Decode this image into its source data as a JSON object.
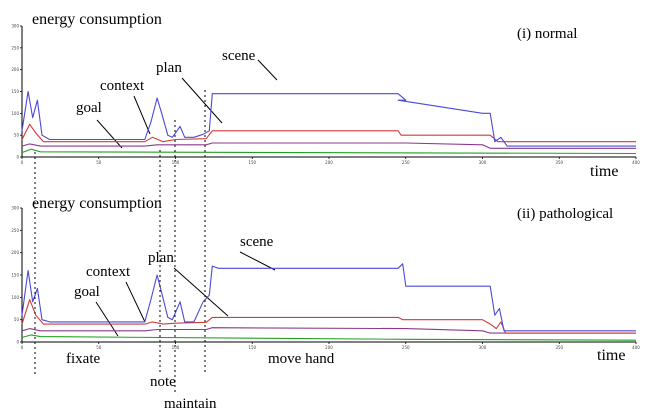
{
  "panels": [
    {
      "title": "(i) normal",
      "ylabel": "energy consumption",
      "xlabel": "time",
      "annotations": {
        "goal": "goal",
        "context": "context",
        "plan": "plan",
        "scene": "scene"
      }
    },
    {
      "title": "(ii) pathological",
      "ylabel": "energy consumption",
      "xlabel": "time",
      "annotations": {
        "goal": "goal",
        "context": "context",
        "plan": "plan",
        "scene": "scene"
      }
    }
  ],
  "phase_labels": {
    "fixate": "fixate",
    "note": "note",
    "maintain": "maintain",
    "move_hand": "move hand"
  },
  "colors": {
    "scene": "#4a4ad8",
    "plan": "#d23a3a",
    "context": "#8a3a8a",
    "goal": "#22a022",
    "axis": "#000000"
  },
  "chart_data": [
    {
      "type": "line",
      "title": "(i) normal",
      "xlabel": "time",
      "ylabel": "energy consumption",
      "xlim": [
        0,
        400
      ],
      "ylim": [
        0,
        300
      ],
      "xticks": [
        0,
        50,
        100,
        150,
        200,
        250,
        300,
        350,
        400
      ],
      "yticks": [
        0,
        50,
        100,
        150,
        200,
        250,
        300
      ],
      "series": [
        {
          "name": "scene",
          "points": [
            [
              0,
              60
            ],
            [
              4,
              150
            ],
            [
              7,
              90
            ],
            [
              10,
              130
            ],
            [
              13,
              50
            ],
            [
              18,
              40
            ],
            [
              80,
              40
            ],
            [
              84,
              80
            ],
            [
              88,
              135
            ],
            [
              91,
              100
            ],
            [
              95,
              50
            ],
            [
              98,
              45
            ],
            [
              103,
              70
            ],
            [
              106,
              45
            ],
            [
              112,
              45
            ],
            [
              118,
              52
            ],
            [
              122,
              60
            ],
            [
              124,
              145
            ],
            [
              128,
              145
            ],
            [
              245,
              145
            ],
            [
              250,
              130
            ],
            [
              245,
              130
            ],
            [
              300,
              100
            ],
            [
              305,
              100
            ],
            [
              308,
              35
            ],
            [
              312,
              45
            ],
            [
              316,
              25
            ],
            [
              400,
              25
            ]
          ]
        },
        {
          "name": "plan",
          "points": [
            [
              0,
              40
            ],
            [
              5,
              75
            ],
            [
              9,
              55
            ],
            [
              14,
              35
            ],
            [
              80,
              35
            ],
            [
              85,
              45
            ],
            [
              92,
              35
            ],
            [
              100,
              40
            ],
            [
              120,
              42
            ],
            [
              124,
              60
            ],
            [
              128,
              60
            ],
            [
              245,
              60
            ],
            [
              247,
              50
            ],
            [
              305,
              50
            ],
            [
              310,
              35
            ],
            [
              400,
              35
            ]
          ]
        },
        {
          "name": "context",
          "points": [
            [
              0,
              25
            ],
            [
              5,
              30
            ],
            [
              12,
              25
            ],
            [
              80,
              25
            ],
            [
              88,
              28
            ],
            [
              120,
              28
            ],
            [
              124,
              32
            ],
            [
              250,
              32
            ],
            [
              300,
              28
            ],
            [
              305,
              20
            ],
            [
              400,
              20
            ]
          ]
        },
        {
          "name": "goal",
          "points": [
            [
              0,
              10
            ],
            [
              6,
              18
            ],
            [
              12,
              12
            ],
            [
              400,
              8
            ]
          ]
        }
      ]
    },
    {
      "type": "line",
      "title": "(ii) pathological",
      "xlabel": "time",
      "ylabel": "energy consumption",
      "xlim": [
        0,
        400
      ],
      "ylim": [
        0,
        300
      ],
      "xticks": [
        0,
        50,
        100,
        150,
        200,
        250,
        300,
        350,
        400
      ],
      "yticks": [
        0,
        50,
        100,
        150,
        200,
        250,
        300
      ],
      "series": [
        {
          "name": "scene",
          "points": [
            [
              0,
              60
            ],
            [
              4,
              160
            ],
            [
              7,
              90
            ],
            [
              10,
              120
            ],
            [
              13,
              50
            ],
            [
              18,
              45
            ],
            [
              80,
              45
            ],
            [
              84,
              95
            ],
            [
              88,
              150
            ],
            [
              91,
              110
            ],
            [
              95,
              55
            ],
            [
              98,
              50
            ],
            [
              103,
              90
            ],
            [
              106,
              45
            ],
            [
              112,
              45
            ],
            [
              118,
              90
            ],
            [
              122,
              105
            ],
            [
              124,
              170
            ],
            [
              128,
              165
            ],
            [
              245,
              165
            ],
            [
              248,
              175
            ],
            [
              250,
              125
            ],
            [
              300,
              125
            ],
            [
              305,
              125
            ],
            [
              308,
              60
            ],
            [
              311,
              75
            ],
            [
              314,
              25
            ],
            [
              400,
              25
            ]
          ]
        },
        {
          "name": "plan",
          "points": [
            [
              0,
              40
            ],
            [
              5,
              95
            ],
            [
              9,
              60
            ],
            [
              14,
              40
            ],
            [
              80,
              40
            ],
            [
              85,
              45
            ],
            [
              92,
              40
            ],
            [
              100,
              42
            ],
            [
              120,
              44
            ],
            [
              124,
              55
            ],
            [
              128,
              55
            ],
            [
              245,
              55
            ],
            [
              248,
              50
            ],
            [
              300,
              50
            ],
            [
              305,
              40
            ],
            [
              309,
              30
            ],
            [
              312,
              45
            ],
            [
              315,
              20
            ],
            [
              400,
              20
            ]
          ]
        },
        {
          "name": "context",
          "points": [
            [
              0,
              25
            ],
            [
              5,
              30
            ],
            [
              12,
              25
            ],
            [
              80,
              25
            ],
            [
              88,
              28
            ],
            [
              120,
              28
            ],
            [
              124,
              32
            ],
            [
              250,
              30
            ],
            [
              300,
              25
            ],
            [
              305,
              20
            ],
            [
              400,
              20
            ]
          ]
        },
        {
          "name": "goal",
          "points": [
            [
              0,
              10
            ],
            [
              6,
              16
            ],
            [
              12,
              12
            ],
            [
              250,
              6
            ],
            [
              400,
              4
            ]
          ]
        }
      ]
    }
  ]
}
